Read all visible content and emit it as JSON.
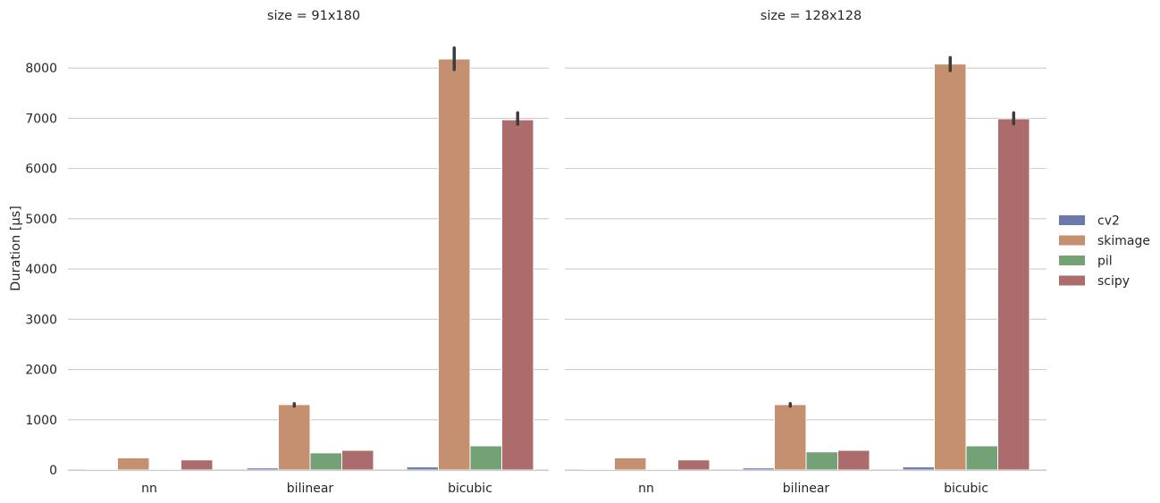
{
  "chart_data": {
    "type": "bar",
    "ylabel": "Duration [µs]",
    "ylim": [
      0,
      8700
    ],
    "yticks": [
      0,
      1000,
      2000,
      3000,
      4000,
      5000,
      6000,
      7000,
      8000
    ],
    "categories": [
      "nn",
      "bilinear",
      "bicubic"
    ],
    "grid": "horizontal",
    "legend_placement": "right",
    "legend": [
      "cv2",
      "skimage",
      "pil",
      "scipy"
    ],
    "colors": {
      "cv2": "#6c79ad",
      "skimage": "#c4906f",
      "pil": "#74a276",
      "scipy": "#ac6c6b"
    },
    "panels": [
      {
        "title": "size = 91x180",
        "series": [
          {
            "name": "cv2",
            "values": [
              5,
              40,
              60
            ],
            "err_low": [
              null,
              null,
              null
            ],
            "err_high": [
              null,
              null,
              null
            ]
          },
          {
            "name": "skimage",
            "values": [
              240,
              1300,
              8180
            ],
            "err_low": [
              null,
              1270,
              7970
            ],
            "err_high": [
              null,
              1320,
              8400
            ]
          },
          {
            "name": "pil",
            "values": [
              10,
              340,
              480
            ],
            "err_low": [
              null,
              null,
              null
            ],
            "err_high": [
              null,
              null,
              null
            ]
          },
          {
            "name": "scipy",
            "values": [
              200,
              390,
              6970
            ],
            "err_low": [
              null,
              null,
              6880
            ],
            "err_high": [
              null,
              null,
              7110
            ]
          }
        ]
      },
      {
        "title": "size = 128x128",
        "series": [
          {
            "name": "cv2",
            "values": [
              5,
              40,
              60
            ],
            "err_low": [
              null,
              null,
              null
            ],
            "err_high": [
              null,
              null,
              null
            ]
          },
          {
            "name": "skimage",
            "values": [
              240,
              1300,
              8080
            ],
            "err_low": [
              null,
              1270,
              7950
            ],
            "err_high": [
              null,
              1320,
              8210
            ]
          },
          {
            "name": "pil",
            "values": [
              10,
              360,
              480
            ],
            "err_low": [
              null,
              null,
              null
            ],
            "err_high": [
              null,
              null,
              null
            ]
          },
          {
            "name": "scipy",
            "values": [
              200,
              390,
              6990
            ],
            "err_low": [
              null,
              null,
              6890
            ],
            "err_high": [
              null,
              null,
              7110
            ]
          }
        ]
      }
    ]
  }
}
